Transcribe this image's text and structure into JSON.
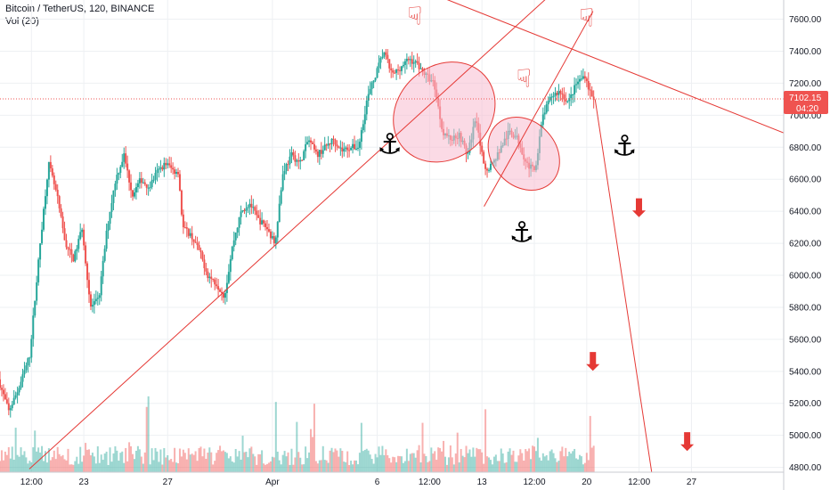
{
  "header": {
    "title": "Bitcoin / TetherUS, 120, BINANCE",
    "volume_label": "Vol (20)"
  },
  "colors": {
    "up": "#26a69a",
    "down": "#ef5350",
    "drawing": "#e53935",
    "grid": "#eef0f3",
    "highlight_fill": "#f8bbd0",
    "anchor": "#000000"
  },
  "chart_data": {
    "type": "candlestick",
    "title": "Bitcoin / TetherUS, 120, BINANCE",
    "y_axis": {
      "position": "right",
      "range": [
        4770,
        7720
      ],
      "ticks": [
        4800,
        5000,
        5200,
        5400,
        5600,
        5800,
        6000,
        6200,
        6400,
        6600,
        6800,
        7000,
        7200,
        7400,
        7600
      ],
      "tick_labels": [
        "4800.00",
        "5000.00",
        "5200.00",
        "5400.00",
        "5600.00",
        "5800.00",
        "6000.00",
        "6200.00",
        "6400.00",
        "6600.00",
        "6800.00",
        "7000.00",
        "7200.00",
        "7400.00",
        "7600.00"
      ]
    },
    "x_axis": {
      "range": [
        0,
        37.4
      ],
      "ticks": [
        {
          "t": 1.5,
          "label": "12:00"
        },
        {
          "t": 4,
          "label": "23"
        },
        {
          "t": 8,
          "label": "27"
        },
        {
          "t": 13,
          "label": "Apr"
        },
        {
          "t": 18,
          "label": "6"
        },
        {
          "t": 20.5,
          "label": "12:00"
        },
        {
          "t": 23,
          "label": "13"
        },
        {
          "t": 25.5,
          "label": "12:00"
        },
        {
          "t": 28,
          "label": "20"
        },
        {
          "t": 30.5,
          "label": "12:00"
        },
        {
          "t": 33,
          "label": "27"
        }
      ]
    },
    "last_price": {
      "value": 7102.15,
      "label": "7102.15",
      "countdown": "04:20"
    },
    "price_path": [
      [
        0,
        5350
      ],
      [
        0.5,
        5150
      ],
      [
        1,
        5300
      ],
      [
        1.5,
        5500
      ],
      [
        2,
        6200
      ],
      [
        2.4,
        6700
      ],
      [
        2.8,
        6500
      ],
      [
        3.2,
        6200
      ],
      [
        3.6,
        6100
      ],
      [
        4,
        6300
      ],
      [
        4.4,
        5800
      ],
      [
        4.8,
        5850
      ],
      [
        5.2,
        6300
      ],
      [
        5.6,
        6600
      ],
      [
        6,
        6750
      ],
      [
        6.4,
        6500
      ],
      [
        6.8,
        6600
      ],
      [
        7.2,
        6550
      ],
      [
        7.6,
        6650
      ],
      [
        8,
        6700
      ],
      [
        8.4,
        6650
      ],
      [
        8.6,
        6650
      ],
      [
        8.8,
        6300
      ],
      [
        9.2,
        6250
      ],
      [
        9.6,
        6150
      ],
      [
        10,
        6000
      ],
      [
        10.4,
        5950
      ],
      [
        10.8,
        5870
      ],
      [
        11.2,
        6200
      ],
      [
        11.6,
        6400
      ],
      [
        12,
        6450
      ],
      [
        12.4,
        6350
      ],
      [
        12.8,
        6300
      ],
      [
        13.2,
        6200
      ],
      [
        13.6,
        6650
      ],
      [
        14,
        6750
      ],
      [
        14.4,
        6700
      ],
      [
        14.8,
        6850
      ],
      [
        15.2,
        6750
      ],
      [
        15.6,
        6800
      ],
      [
        16,
        6850
      ],
      [
        16.4,
        6780
      ],
      [
        16.8,
        6800
      ],
      [
        17.2,
        6800
      ],
      [
        17.6,
        7100
      ],
      [
        18,
        7250
      ],
      [
        18.4,
        7400
      ],
      [
        18.8,
        7250
      ],
      [
        19.2,
        7300
      ],
      [
        19.6,
        7350
      ],
      [
        20,
        7320
      ],
      [
        20.4,
        7250
      ],
      [
        20.8,
        7200
      ],
      [
        21.2,
        6900
      ],
      [
        21.6,
        6850
      ],
      [
        22,
        6880
      ],
      [
        22.4,
        6750
      ],
      [
        22.8,
        7000
      ],
      [
        23.2,
        6650
      ],
      [
        23.6,
        6700
      ],
      [
        24,
        6800
      ],
      [
        24.4,
        6900
      ],
      [
        24.8,
        6850
      ],
      [
        25.2,
        6700
      ],
      [
        25.6,
        6650
      ],
      [
        26,
        7000
      ],
      [
        26.4,
        7120
      ],
      [
        26.8,
        7150
      ],
      [
        27.2,
        7080
      ],
      [
        27.6,
        7200
      ],
      [
        28,
        7250
      ],
      [
        28.2,
        7160
      ],
      [
        28.4,
        7100
      ]
    ],
    "trendlines": [
      {
        "from": [
          1.4,
          4790
        ],
        "to": [
          26.5,
          7780
        ]
      },
      {
        "from": [
          21,
          7740
        ],
        "to": [
          37.4,
          6890
        ]
      },
      {
        "from": [
          23.1,
          6430
        ],
        "to": [
          28.3,
          7650
        ]
      },
      {
        "from": [
          28.4,
          7100
        ],
        "to": [
          31.1,
          4770
        ]
      }
    ],
    "highlight_ellipses": [
      {
        "center": [
          21.2,
          7020
        ],
        "rx_t": 2.2,
        "ry_v": 340
      },
      {
        "center": [
          25.0,
          6760
        ],
        "rx_t": 1.9,
        "ry_v": 200
      }
    ],
    "annotations": [
      {
        "icon": "pointing-hand-icon",
        "glyph": "☟",
        "at": [
          19.8,
          7620
        ]
      },
      {
        "icon": "pointing-hand-icon",
        "glyph": "☟",
        "at": [
          28.0,
          7610
        ]
      },
      {
        "icon": "pointing-hand-icon",
        "glyph": "☟",
        "at": [
          25.0,
          7230
        ]
      },
      {
        "icon": "anchor-icon",
        "glyph": "⚓",
        "at": [
          18.6,
          6820
        ]
      },
      {
        "icon": "anchor-icon",
        "glyph": "⚓",
        "at": [
          29.8,
          6810
        ]
      },
      {
        "icon": "anchor-icon",
        "glyph": "⚓",
        "at": [
          24.9,
          6270
        ]
      },
      {
        "icon": "down-arrow-icon",
        "glyph": "⬇",
        "at": [
          30.5,
          6420
        ]
      },
      {
        "icon": "down-arrow-icon",
        "glyph": "⬇",
        "at": [
          28.3,
          5460
        ]
      },
      {
        "icon": "down-arrow-icon",
        "glyph": "⬇",
        "at": [
          32.8,
          4960
        ]
      }
    ]
  }
}
